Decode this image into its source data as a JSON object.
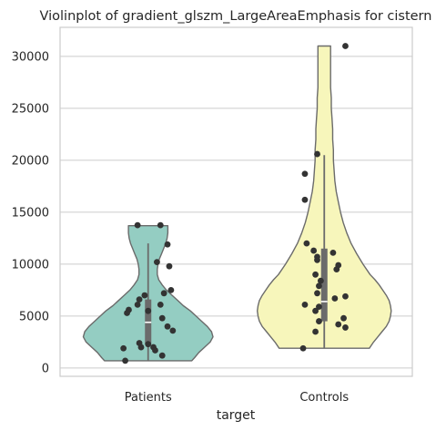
{
  "chart_data": {
    "type": "violin",
    "title": "Violinplot of gradient_glszm_LargeAreaEmphasis for cistern",
    "xlabel": "target",
    "ylabel": "",
    "categories": [
      "Patients",
      "Controls"
    ],
    "ylim": [
      -800,
      32800
    ],
    "yticks": [
      0,
      5000,
      10000,
      15000,
      20000,
      25000,
      30000
    ],
    "grid": "horizontal",
    "colors": {
      "Patients": "#94cdc2",
      "Controls": "#f7f6bb",
      "outline": "#6b6b6b",
      "points": "#333333",
      "box": "#6b6b6b",
      "median": "#ffffff",
      "grid": "#cccccc",
      "frame": "#cccccc"
    },
    "series": [
      {
        "name": "Patients",
        "box": {
          "q1": 2300,
          "median": 4400,
          "q3": 6600,
          "whisker_low": 700,
          "whisker_high": 12000
        },
        "violin_range": [
          700,
          13700
        ],
        "violin_profile": [
          [
            700,
            0.62
          ],
          [
            1000,
            0.66
          ],
          [
            1500,
            0.72
          ],
          [
            2000,
            0.8
          ],
          [
            2500,
            0.88
          ],
          [
            3000,
            0.92
          ],
          [
            3500,
            0.9
          ],
          [
            4000,
            0.84
          ],
          [
            4500,
            0.76
          ],
          [
            5000,
            0.68
          ],
          [
            5500,
            0.6
          ],
          [
            6000,
            0.5
          ],
          [
            6500,
            0.42
          ],
          [
            7000,
            0.34
          ],
          [
            7500,
            0.26
          ],
          [
            8000,
            0.2
          ],
          [
            8500,
            0.15
          ],
          [
            9000,
            0.13
          ],
          [
            9500,
            0.13
          ],
          [
            10000,
            0.14
          ],
          [
            10500,
            0.16
          ],
          [
            11000,
            0.19
          ],
          [
            11500,
            0.22
          ],
          [
            12000,
            0.25
          ],
          [
            12500,
            0.27
          ],
          [
            13000,
            0.28
          ],
          [
            13500,
            0.28
          ],
          [
            13700,
            0.28
          ]
        ],
        "points": [
          {
            "x": -0.06,
            "y": 13750
          },
          {
            "x": 0.07,
            "y": 13750
          },
          {
            "x": 0.11,
            "y": 11900
          },
          {
            "x": 0.05,
            "y": 10200
          },
          {
            "x": 0.12,
            "y": 9800
          },
          {
            "x": 0.13,
            "y": 7500
          },
          {
            "x": 0.09,
            "y": 7200
          },
          {
            "x": -0.02,
            "y": 7000
          },
          {
            "x": -0.05,
            "y": 6600
          },
          {
            "x": -0.06,
            "y": 6100
          },
          {
            "x": 0.07,
            "y": 6100
          },
          {
            "x": -0.11,
            "y": 5600
          },
          {
            "x": 0.0,
            "y": 5500
          },
          {
            "x": -0.12,
            "y": 5300
          },
          {
            "x": 0.08,
            "y": 4800
          },
          {
            "x": 0.11,
            "y": 4000
          },
          {
            "x": 0.14,
            "y": 3600
          },
          {
            "x": -0.05,
            "y": 2400
          },
          {
            "x": 0.0,
            "y": 2300
          },
          {
            "x": -0.04,
            "y": 2000
          },
          {
            "x": 0.03,
            "y": 2000
          },
          {
            "x": -0.14,
            "y": 1900
          },
          {
            "x": 0.04,
            "y": 1700
          },
          {
            "x": 0.08,
            "y": 1200
          },
          {
            "x": -0.13,
            "y": 700
          }
        ]
      },
      {
        "name": "Controls",
        "box": {
          "q1": 4500,
          "median": 6400,
          "q3": 11500,
          "whisker_low": 1900,
          "whisker_high": 20500
        },
        "violin_range": [
          1900,
          31000
        ],
        "violin_profile": [
          [
            1900,
            0.64
          ],
          [
            2500,
            0.7
          ],
          [
            3000,
            0.76
          ],
          [
            3500,
            0.82
          ],
          [
            4000,
            0.88
          ],
          [
            4500,
            0.92
          ],
          [
            5000,
            0.94
          ],
          [
            5500,
            0.95
          ],
          [
            6000,
            0.94
          ],
          [
            6500,
            0.92
          ],
          [
            7000,
            0.88
          ],
          [
            7500,
            0.83
          ],
          [
            8000,
            0.78
          ],
          [
            8500,
            0.72
          ],
          [
            9000,
            0.65
          ],
          [
            10000,
            0.55
          ],
          [
            11000,
            0.46
          ],
          [
            12000,
            0.38
          ],
          [
            13000,
            0.32
          ],
          [
            14000,
            0.27
          ],
          [
            15000,
            0.23
          ],
          [
            16000,
            0.2
          ],
          [
            17000,
            0.17
          ],
          [
            18000,
            0.15
          ],
          [
            19000,
            0.14
          ],
          [
            20000,
            0.13
          ],
          [
            21000,
            0.13
          ],
          [
            22000,
            0.12
          ],
          [
            23000,
            0.12
          ],
          [
            24000,
            0.11
          ],
          [
            25000,
            0.1
          ],
          [
            26000,
            0.1
          ],
          [
            27000,
            0.09
          ],
          [
            28000,
            0.09
          ],
          [
            29000,
            0.09
          ],
          [
            30000,
            0.09
          ],
          [
            31000,
            0.09
          ]
        ],
        "points": [
          {
            "x": 0.12,
            "y": 31000
          },
          {
            "x": -0.04,
            "y": 20600
          },
          {
            "x": -0.11,
            "y": 18700
          },
          {
            "x": -0.11,
            "y": 16200
          },
          {
            "x": -0.1,
            "y": 12000
          },
          {
            "x": -0.06,
            "y": 11300
          },
          {
            "x": 0.05,
            "y": 11100
          },
          {
            "x": -0.04,
            "y": 10700
          },
          {
            "x": -0.04,
            "y": 10400
          },
          {
            "x": 0.08,
            "y": 9900
          },
          {
            "x": 0.07,
            "y": 9500
          },
          {
            "x": -0.05,
            "y": 9000
          },
          {
            "x": -0.02,
            "y": 8400
          },
          {
            "x": -0.03,
            "y": 7900
          },
          {
            "x": -0.04,
            "y": 7200
          },
          {
            "x": 0.12,
            "y": 6900
          },
          {
            "x": 0.06,
            "y": 6700
          },
          {
            "x": -0.11,
            "y": 6100
          },
          {
            "x": -0.03,
            "y": 5900
          },
          {
            "x": -0.05,
            "y": 5500
          },
          {
            "x": 0.11,
            "y": 4800
          },
          {
            "x": -0.03,
            "y": 4500
          },
          {
            "x": 0.08,
            "y": 4200
          },
          {
            "x": 0.12,
            "y": 3900
          },
          {
            "x": -0.05,
            "y": 3500
          },
          {
            "x": -0.12,
            "y": 1900
          }
        ]
      }
    ]
  }
}
